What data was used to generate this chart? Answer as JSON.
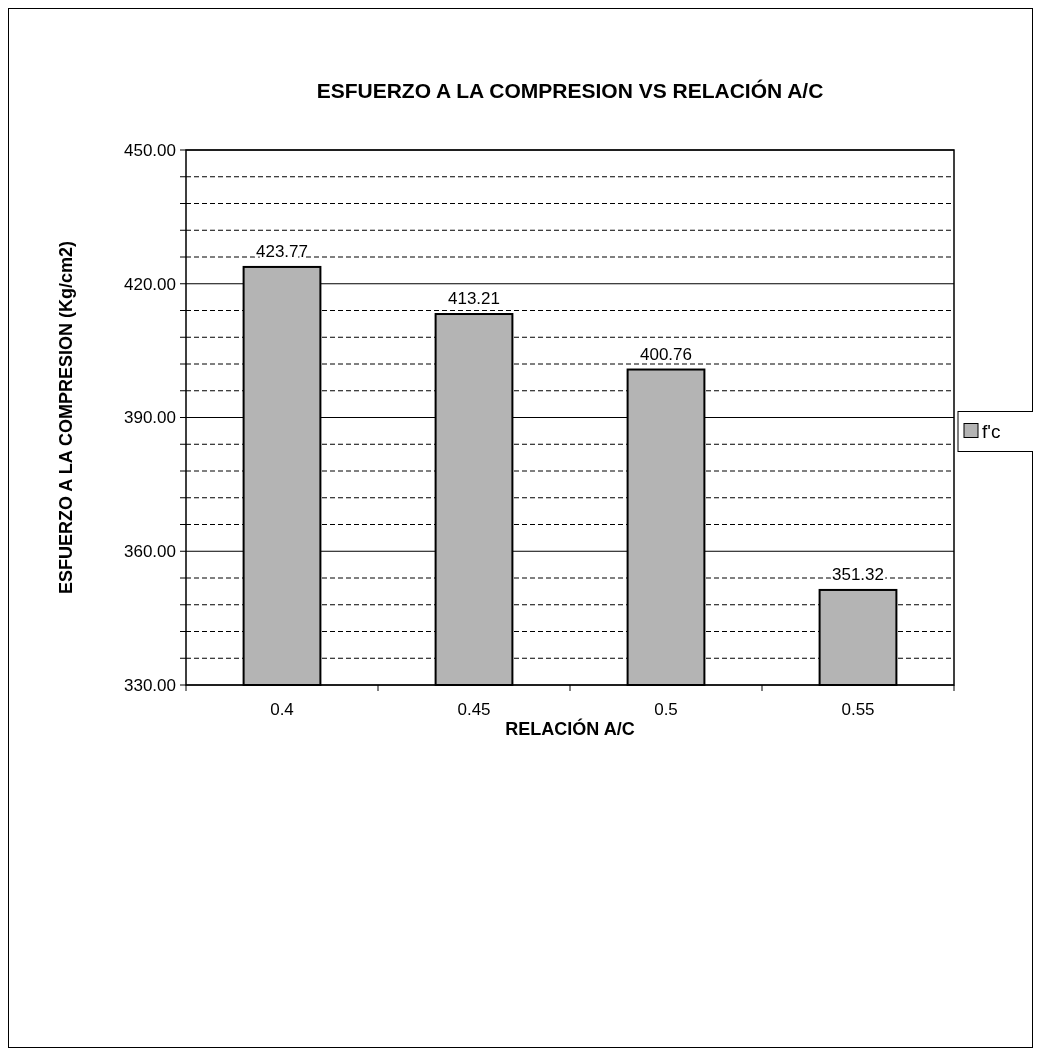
{
  "chart_data": {
    "type": "bar",
    "title": "ESFUERZO A LA COMPRESION  VS  RELACIÓN A/C",
    "xlabel": "RELACIÓN  A/C",
    "ylabel": "ESFUERZO A LA COMPRESION (Kg/cm2)",
    "categories": [
      "0.4",
      "0.45",
      "0.5",
      "0.55"
    ],
    "series": [
      {
        "name": "f'c",
        "color": "#b4b4b4",
        "values": [
          423.77,
          413.21,
          400.76,
          351.32
        ]
      }
    ],
    "ylim": [
      330,
      450
    ],
    "yticks": [
      {
        "value": 330,
        "label": "330.00"
      },
      {
        "value": 336,
        "label": null
      },
      {
        "value": 342,
        "label": null
      },
      {
        "value": 348,
        "label": null
      },
      {
        "value": 354,
        "label": null
      },
      {
        "value": 360,
        "label": "360.00"
      },
      {
        "value": 366,
        "label": null
      },
      {
        "value": 372,
        "label": null
      },
      {
        "value": 378,
        "label": null
      },
      {
        "value": 384,
        "label": null
      },
      {
        "value": 390,
        "label": "390.00"
      },
      {
        "value": 396,
        "label": null
      },
      {
        "value": 402,
        "label": null
      },
      {
        "value": 408,
        "label": null
      },
      {
        "value": 414,
        "label": null
      },
      {
        "value": 420,
        "label": "420.00"
      },
      {
        "value": 426,
        "label": null
      },
      {
        "value": 432,
        "label": null
      },
      {
        "value": 438,
        "label": null
      },
      {
        "value": 444,
        "label": null
      },
      {
        "value": 450,
        "label": "450.00"
      }
    ],
    "grid": "y",
    "legend": "right",
    "data_labels": true
  }
}
